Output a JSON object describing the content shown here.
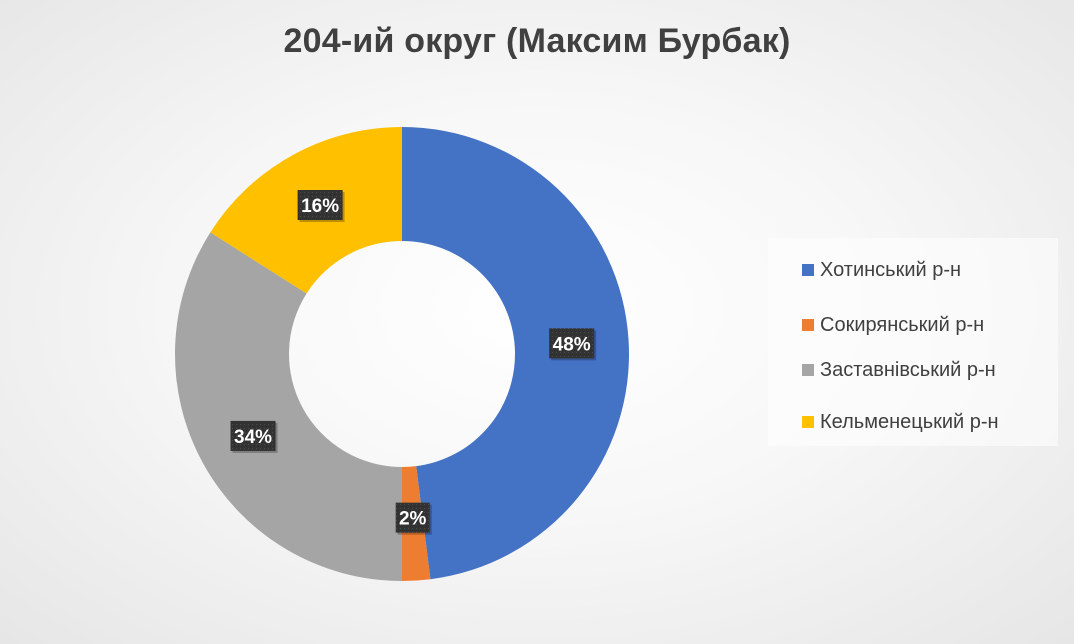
{
  "chart_data": {
    "type": "pie",
    "variant": "donut",
    "title": "204-ий округ (Максим Бурбак)",
    "categories": [
      "Хотинський р-н",
      "Сокирянський р-н",
      "Заставнівський р-н",
      "Кельменецький р-н"
    ],
    "values": [
      48,
      2,
      34,
      16
    ],
    "data_labels": [
      "48%",
      "2%",
      "34%",
      "16%"
    ],
    "colors": [
      "#4472C4",
      "#ED7D31",
      "#A5A5A5",
      "#FFC000"
    ],
    "legend_position": "right"
  }
}
